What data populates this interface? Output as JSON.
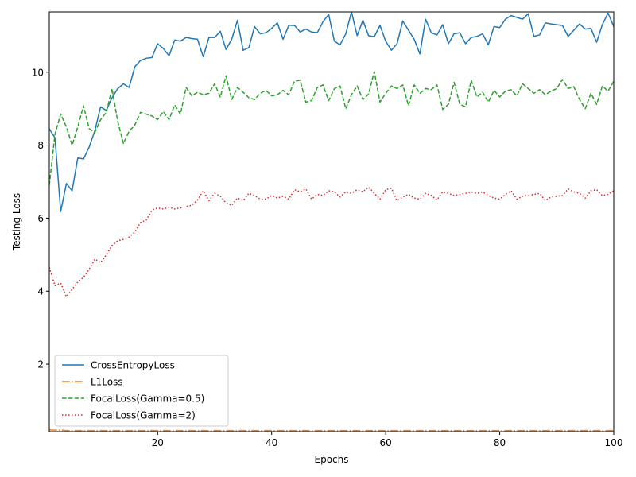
{
  "chart_data": {
    "type": "line",
    "title": "",
    "xlabel": "Epochs",
    "ylabel": "Testing Loss",
    "xlim": [
      1,
      100
    ],
    "ylim": [
      0.15,
      11.65
    ],
    "xticks": [
      20,
      40,
      60,
      80,
      100
    ],
    "yticks": [
      2,
      4,
      6,
      8,
      10
    ],
    "grid": false,
    "legend_position": "lower-left",
    "x": [
      1,
      2,
      3,
      4,
      5,
      6,
      7,
      8,
      9,
      10,
      11,
      12,
      13,
      14,
      15,
      16,
      17,
      18,
      19,
      20,
      21,
      22,
      23,
      24,
      25,
      26,
      27,
      28,
      29,
      30,
      31,
      32,
      33,
      34,
      35,
      36,
      37,
      38,
      39,
      40,
      41,
      42,
      43,
      44,
      45,
      46,
      47,
      48,
      49,
      50,
      51,
      52,
      53,
      54,
      55,
      56,
      57,
      58,
      59,
      60,
      61,
      62,
      63,
      64,
      65,
      66,
      67,
      68,
      69,
      70,
      71,
      72,
      73,
      74,
      75,
      76,
      77,
      78,
      79,
      80,
      81,
      82,
      83,
      84,
      85,
      86,
      87,
      88,
      89,
      90,
      91,
      92,
      93,
      94,
      95,
      96,
      97,
      98,
      99,
      100
    ],
    "series": [
      {
        "name": "CrossEntropyLoss",
        "color": "#1f77b4",
        "dash": "solid",
        "values": [
          8.45,
          8.2,
          6.18,
          6.95,
          6.75,
          7.65,
          7.62,
          7.95,
          8.4,
          9.05,
          8.95,
          9.3,
          9.55,
          9.68,
          9.58,
          10.15,
          10.32,
          10.38,
          10.4,
          10.78,
          10.65,
          10.45,
          10.88,
          10.85,
          10.95,
          10.92,
          10.9,
          10.42,
          10.95,
          10.95,
          11.12,
          10.62,
          10.9,
          11.42,
          10.6,
          10.67,
          11.25,
          11.05,
          11.08,
          11.2,
          11.35,
          10.9,
          11.28,
          11.28,
          11.1,
          11.18,
          11.1,
          11.08,
          11.38,
          11.58,
          10.85,
          10.75,
          11.05,
          11.65,
          11.0,
          11.42,
          11.0,
          10.97,
          11.28,
          10.85,
          10.6,
          10.78,
          11.4,
          11.15,
          10.9,
          10.5,
          11.45,
          11.08,
          11.02,
          11.3,
          10.78,
          11.05,
          11.08,
          10.78,
          10.95,
          10.98,
          11.05,
          10.75,
          11.25,
          11.22,
          11.45,
          11.55,
          11.5,
          11.45,
          11.6,
          10.98,
          11.02,
          11.35,
          11.32,
          11.3,
          11.28,
          10.98,
          11.15,
          11.32,
          11.18,
          11.2,
          10.82,
          11.3,
          11.62,
          11.25
        ]
      },
      {
        "name": "L1Loss",
        "color": "#ff7f0e",
        "dash": "dashdot",
        "values": [
          0.2,
          0.19,
          0.19,
          0.18,
          0.18,
          0.18,
          0.18,
          0.18,
          0.18,
          0.18,
          0.18,
          0.18,
          0.18,
          0.18,
          0.18,
          0.18,
          0.18,
          0.18,
          0.18,
          0.18,
          0.18,
          0.18,
          0.18,
          0.18,
          0.18,
          0.18,
          0.18,
          0.18,
          0.18,
          0.18,
          0.18,
          0.18,
          0.18,
          0.18,
          0.18,
          0.18,
          0.18,
          0.18,
          0.18,
          0.18,
          0.18,
          0.18,
          0.18,
          0.18,
          0.18,
          0.18,
          0.18,
          0.18,
          0.18,
          0.18,
          0.18,
          0.18,
          0.18,
          0.18,
          0.18,
          0.18,
          0.18,
          0.18,
          0.18,
          0.18,
          0.18,
          0.18,
          0.18,
          0.18,
          0.18,
          0.18,
          0.18,
          0.18,
          0.18,
          0.18,
          0.18,
          0.18,
          0.18,
          0.18,
          0.18,
          0.18,
          0.18,
          0.18,
          0.18,
          0.18,
          0.18,
          0.18,
          0.18,
          0.18,
          0.18,
          0.18,
          0.18,
          0.18,
          0.18,
          0.18,
          0.18,
          0.18,
          0.18,
          0.18,
          0.18,
          0.18,
          0.18,
          0.18,
          0.18,
          0.18
        ]
      },
      {
        "name": "FocalLoss(Gamma=0.5)",
        "color": "#2ca02c",
        "dash": "dashed",
        "values": [
          6.9,
          8.3,
          8.85,
          8.5,
          8.0,
          8.5,
          9.08,
          8.45,
          8.35,
          8.7,
          8.9,
          9.55,
          8.65,
          8.05,
          8.38,
          8.55,
          8.9,
          8.85,
          8.8,
          8.7,
          8.92,
          8.7,
          9.1,
          8.85,
          9.58,
          9.35,
          9.45,
          9.38,
          9.42,
          9.68,
          9.32,
          9.9,
          9.25,
          9.58,
          9.45,
          9.3,
          9.25,
          9.42,
          9.5,
          9.35,
          9.38,
          9.5,
          9.38,
          9.75,
          9.78,
          9.18,
          9.22,
          9.58,
          9.65,
          9.22,
          9.55,
          9.62,
          9.0,
          9.38,
          9.62,
          9.25,
          9.4,
          10.02,
          9.18,
          9.42,
          9.62,
          9.55,
          9.65,
          9.08,
          9.65,
          9.42,
          9.55,
          9.52,
          9.65,
          8.98,
          9.12,
          9.72,
          9.12,
          9.05,
          9.78,
          9.32,
          9.45,
          9.18,
          9.5,
          9.32,
          9.48,
          9.52,
          9.35,
          9.68,
          9.55,
          9.42,
          9.52,
          9.38,
          9.48,
          9.55,
          9.8,
          9.55,
          9.6,
          9.25,
          9.0,
          9.42,
          9.12,
          9.62,
          9.48,
          9.75
        ]
      },
      {
        "name": "FocalLoss(Gamma=2)",
        "color": "#d62728",
        "dash": "dotted",
        "values": [
          4.65,
          4.15,
          4.22,
          3.85,
          4.05,
          4.25,
          4.38,
          4.6,
          4.88,
          4.78,
          5.0,
          5.25,
          5.38,
          5.42,
          5.48,
          5.62,
          5.88,
          5.95,
          6.22,
          6.28,
          6.25,
          6.3,
          6.25,
          6.28,
          6.32,
          6.35,
          6.5,
          6.75,
          6.48,
          6.68,
          6.6,
          6.42,
          6.35,
          6.55,
          6.48,
          6.68,
          6.62,
          6.52,
          6.52,
          6.62,
          6.55,
          6.6,
          6.52,
          6.78,
          6.72,
          6.8,
          6.52,
          6.65,
          6.62,
          6.75,
          6.72,
          6.58,
          6.72,
          6.68,
          6.78,
          6.72,
          6.85,
          6.68,
          6.52,
          6.78,
          6.82,
          6.48,
          6.58,
          6.65,
          6.55,
          6.52,
          6.68,
          6.62,
          6.5,
          6.72,
          6.68,
          6.62,
          6.65,
          6.68,
          6.72,
          6.68,
          6.72,
          6.62,
          6.55,
          6.52,
          6.65,
          6.75,
          6.52,
          6.6,
          6.62,
          6.65,
          6.68,
          6.48,
          6.58,
          6.6,
          6.62,
          6.8,
          6.72,
          6.68,
          6.55,
          6.75,
          6.78,
          6.62,
          6.65,
          6.75
        ]
      }
    ]
  }
}
